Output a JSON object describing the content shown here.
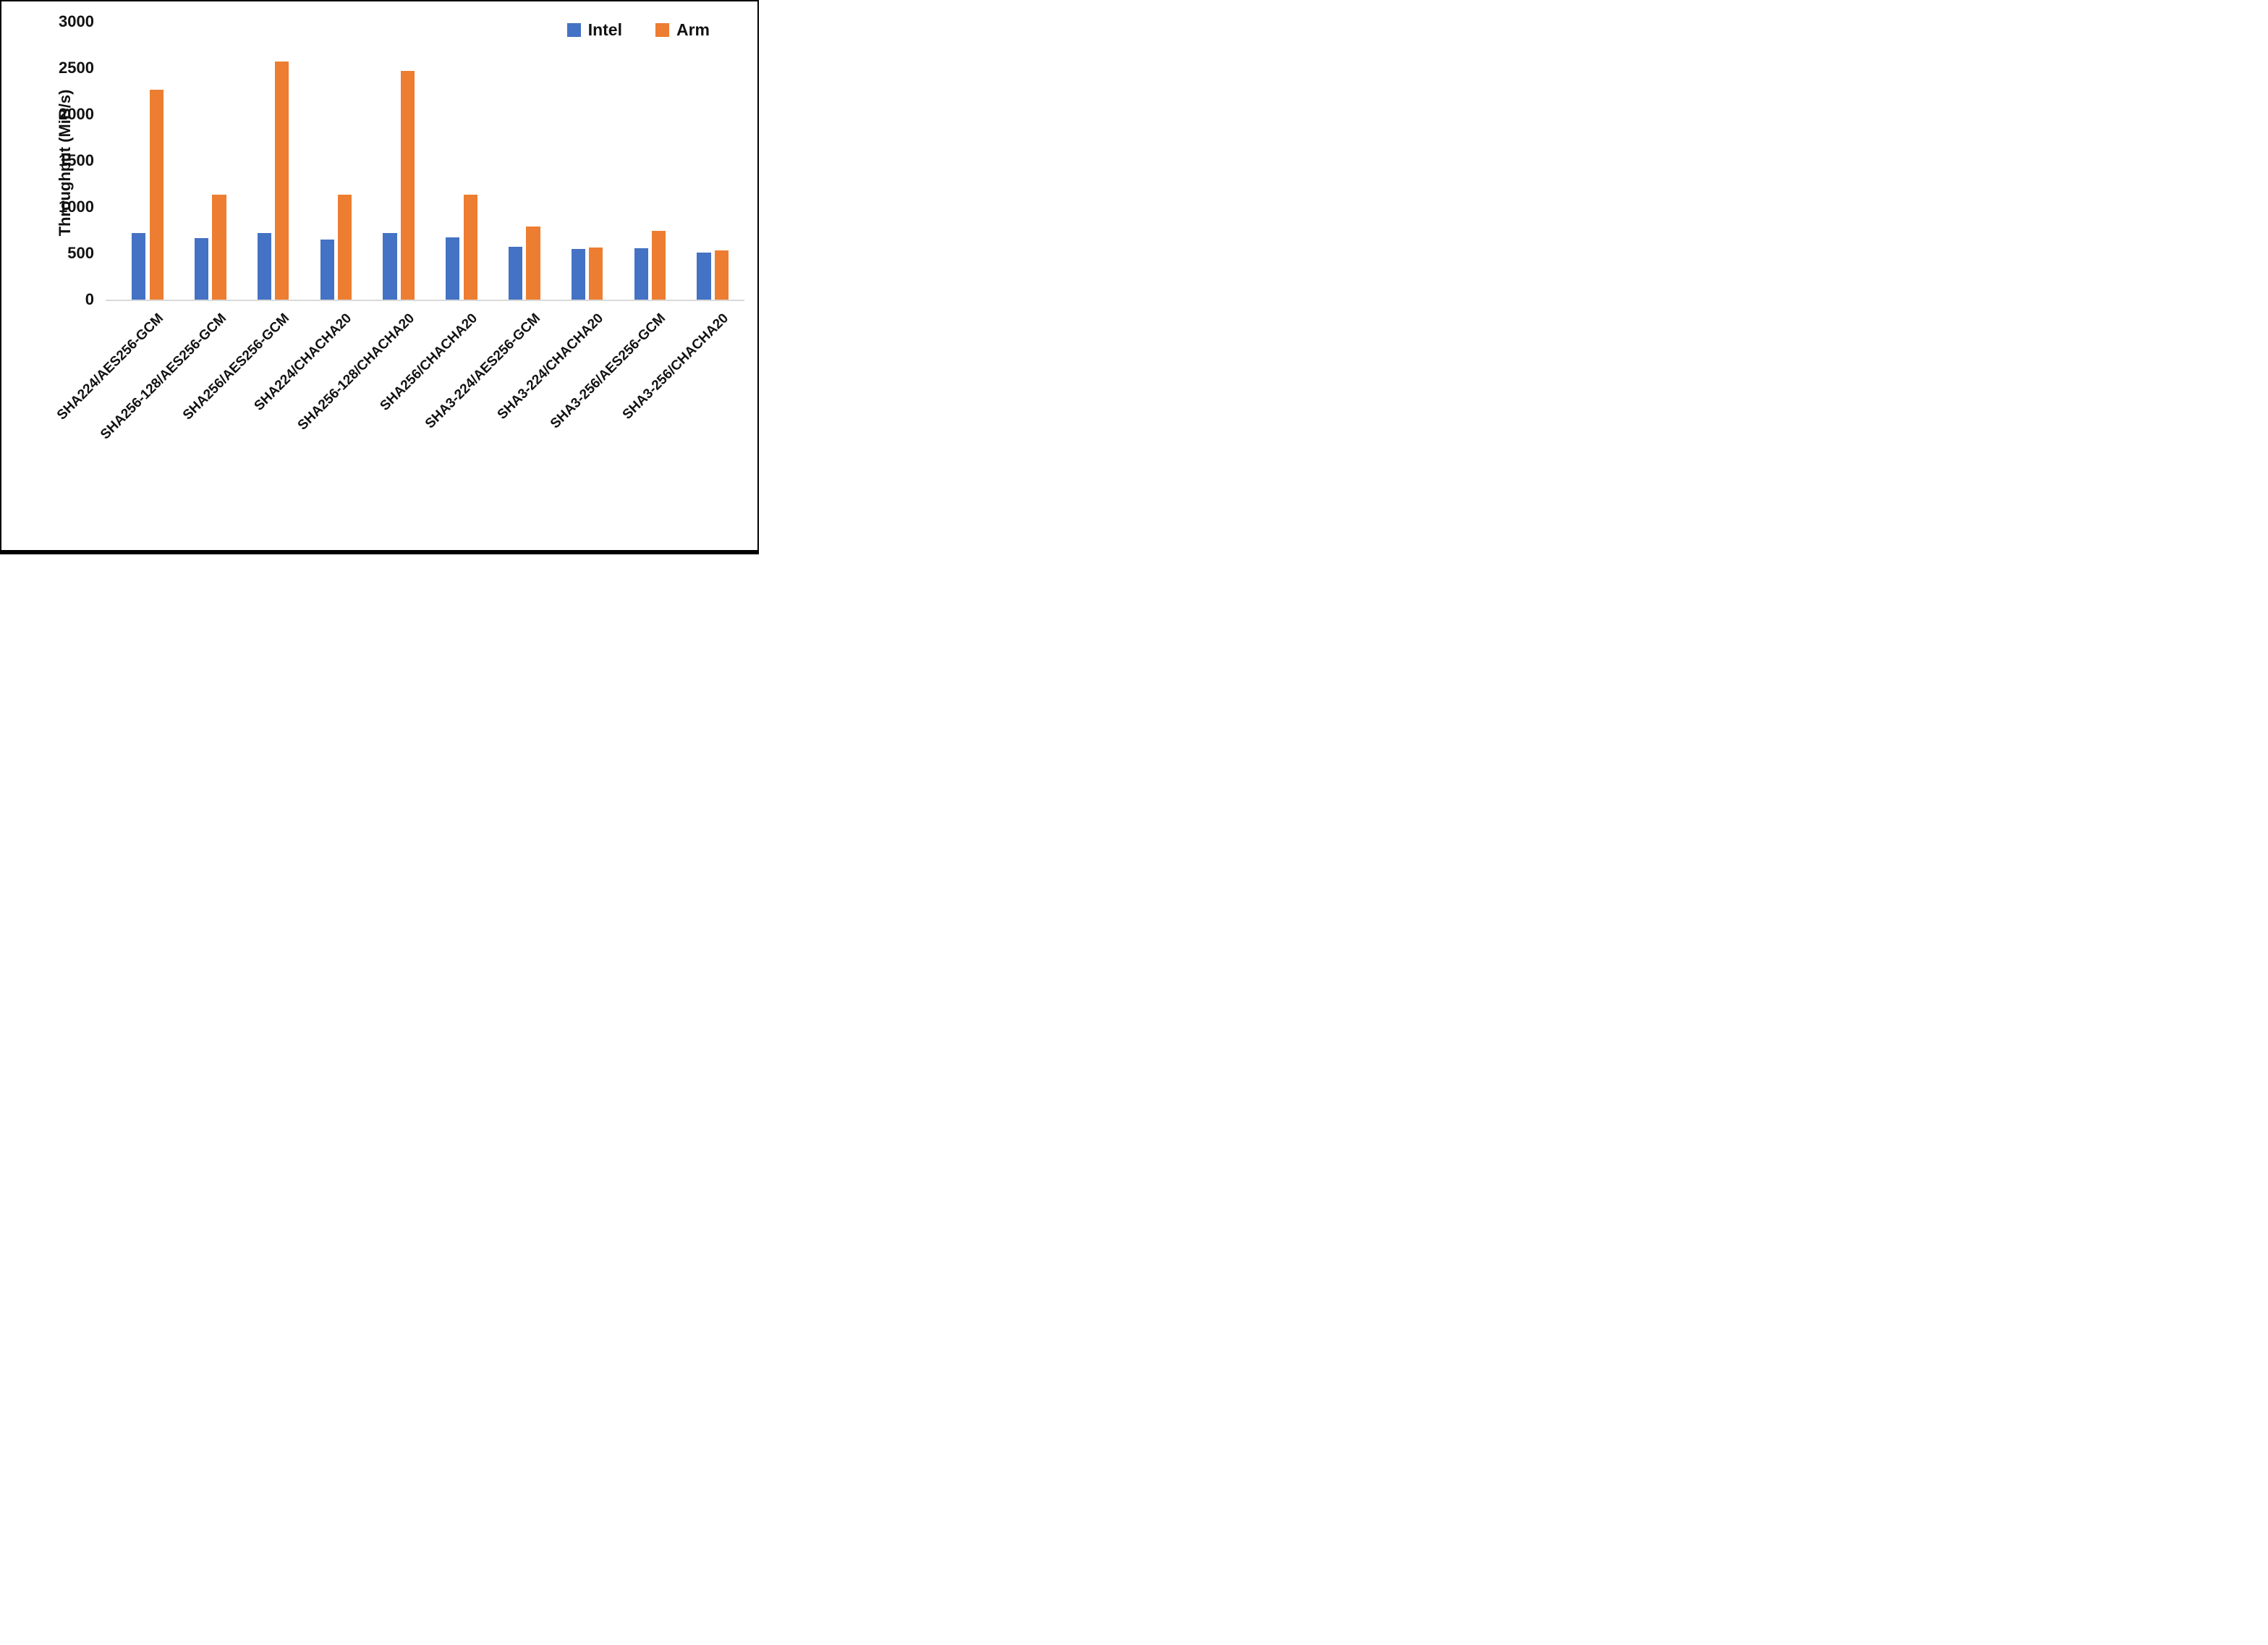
{
  "chart_data": {
    "type": "bar",
    "title": "",
    "xlabel": "",
    "ylabel": "Throughput (MiB/s)",
    "ylim": [
      0,
      3000
    ],
    "yticks": [
      0,
      500,
      1000,
      1500,
      2000,
      2500,
      3000
    ],
    "grid": false,
    "legend_position": "top-right",
    "categories": [
      "SHA224/AES256-GCM",
      "SHA256-128/AES256-GCM",
      "SHA256/AES256-GCM",
      "SHA224/CHACHA20",
      "SHA256-128/CHACHA20",
      "SHA256/CHACHA20",
      "SHA3-224/AES256-GCM",
      "SHA3-224/CHACHA20",
      "SHA3-256/AES256-GCM",
      "SHA3-256/CHACHA20"
    ],
    "series": [
      {
        "name": "Intel",
        "color": "#4472C4",
        "values": [
          720,
          665,
          720,
          650,
          720,
          670,
          570,
          550,
          555,
          510
        ]
      },
      {
        "name": "Arm",
        "color": "#ED7D31",
        "values": [
          2265,
          1130,
          2570,
          1130,
          2470,
          1130,
          790,
          560,
          740,
          535
        ]
      }
    ],
    "axis_line_color": "#d9d9d9"
  }
}
